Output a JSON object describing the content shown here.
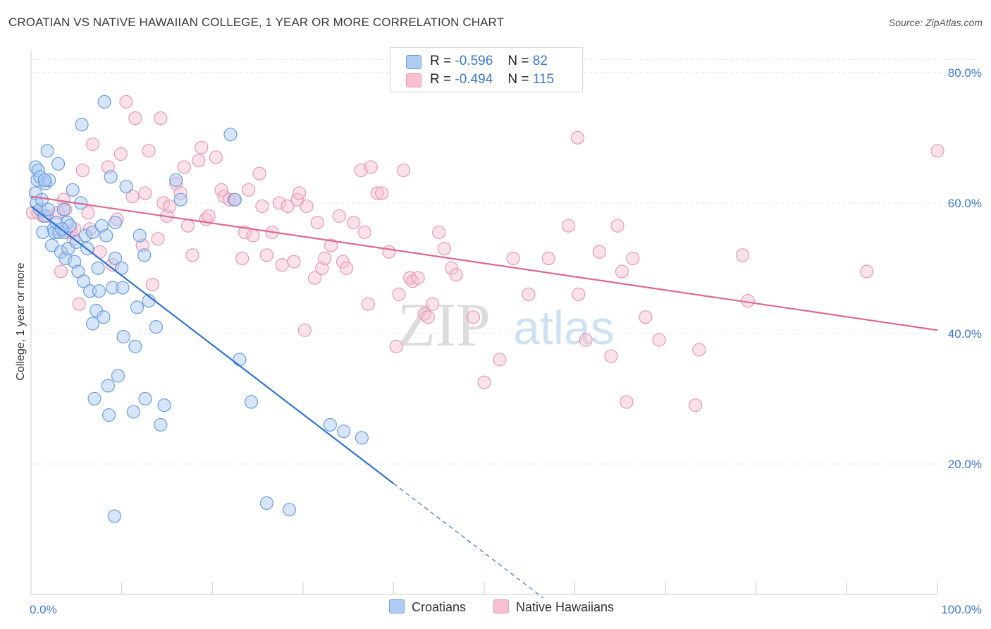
{
  "title": "CROATIAN VS NATIVE HAWAIIAN COLLEGE, 1 YEAR OR MORE CORRELATION CHART",
  "source": "Source: ZipAtlas.com",
  "watermark": {
    "zip": "ZIP",
    "atlas": "atlas"
  },
  "colors": {
    "blue_fill": "#aecbf2",
    "blue_stroke": "#6a9ee0",
    "blue_line": "#2f73d4",
    "pink_fill": "#f7bfd0",
    "pink_stroke": "#e898b2",
    "pink_line": "#e0678f",
    "grid": "#e3e3e3",
    "axis_text": "#3b78d0"
  },
  "legend": {
    "rows": [
      {
        "r_label": "R =",
        "r_value": "-0.596",
        "n_label": "N =",
        "n_value": "82"
      },
      {
        "r_label": "R =",
        "r_value": "-0.494",
        "n_label": "N =",
        "n_value": "115"
      }
    ],
    "series": [
      "Croatians",
      "Native Hawaiians"
    ]
  },
  "chart_data": {
    "type": "scatter",
    "title": "CROATIAN VS NATIVE HAWAIIAN COLLEGE, 1 YEAR OR MORE CORRELATION CHART",
    "xlabel": "",
    "ylabel": "College, 1 year or more",
    "xlim": [
      0,
      100
    ],
    "ylim": [
      0,
      83
    ],
    "x_tick_labels": [
      "0.0%",
      "100.0%"
    ],
    "y_ticks": [
      20,
      40,
      60,
      80
    ],
    "y_tick_labels": [
      "20.0%",
      "40.0%",
      "60.0%",
      "80.0%"
    ],
    "grid": true,
    "legend_position": "top-center",
    "series": [
      {
        "name": "Croatians",
        "R": -0.596,
        "N": 82,
        "trend": {
          "x0": 0,
          "y0": 59.5,
          "x1": 40,
          "y1": 17.0,
          "dashed_to_x": 56.5
        },
        "points": [
          [
            0.5,
            65.5
          ],
          [
            0.5,
            61.5
          ],
          [
            0.6,
            60.0
          ],
          [
            0.7,
            63.5
          ],
          [
            0.8,
            65.0
          ],
          [
            1.0,
            64.0
          ],
          [
            1.0,
            59.0
          ],
          [
            1.2,
            60.5
          ],
          [
            1.3,
            55.5
          ],
          [
            1.5,
            58.0
          ],
          [
            1.6,
            63.0
          ],
          [
            1.8,
            68.0
          ],
          [
            1.9,
            59.0
          ],
          [
            2.0,
            63.5
          ],
          [
            2.3,
            53.5
          ],
          [
            2.5,
            56.0
          ],
          [
            2.6,
            55.5
          ],
          [
            2.8,
            57.0
          ],
          [
            3.0,
            66.0
          ],
          [
            3.1,
            55.5
          ],
          [
            3.3,
            52.5
          ],
          [
            3.6,
            59.0
          ],
          [
            3.7,
            55.5
          ],
          [
            3.8,
            51.5
          ],
          [
            4.0,
            57.0
          ],
          [
            4.1,
            53.0
          ],
          [
            4.3,
            56.5
          ],
          [
            4.6,
            62.0
          ],
          [
            4.8,
            51.0
          ],
          [
            5.0,
            54.0
          ],
          [
            5.2,
            49.5
          ],
          [
            5.5,
            60.0
          ],
          [
            5.6,
            72.0
          ],
          [
            5.8,
            48.0
          ],
          [
            6.0,
            55.0
          ],
          [
            6.2,
            53.0
          ],
          [
            6.5,
            46.5
          ],
          [
            6.8,
            55.5
          ],
          [
            6.8,
            41.5
          ],
          [
            7.0,
            30.0
          ],
          [
            7.2,
            43.5
          ],
          [
            7.4,
            50.0
          ],
          [
            7.5,
            46.5
          ],
          [
            7.8,
            56.5
          ],
          [
            8.0,
            42.5
          ],
          [
            8.1,
            75.5
          ],
          [
            8.3,
            55.0
          ],
          [
            8.5,
            32.0
          ],
          [
            8.6,
            27.5
          ],
          [
            8.8,
            64.0
          ],
          [
            9.0,
            47.0
          ],
          [
            9.2,
            12.0
          ],
          [
            9.3,
            51.5
          ],
          [
            9.3,
            57.0
          ],
          [
            9.6,
            33.5
          ],
          [
            10.0,
            50.0
          ],
          [
            10.1,
            47.0
          ],
          [
            10.2,
            39.5
          ],
          [
            10.5,
            62.5
          ],
          [
            11.3,
            28.0
          ],
          [
            11.5,
            38.0
          ],
          [
            11.7,
            44.0
          ],
          [
            12.0,
            55.0
          ],
          [
            12.5,
            52.0
          ],
          [
            12.6,
            30.0
          ],
          [
            13.0,
            45.0
          ],
          [
            13.8,
            41.0
          ],
          [
            14.3,
            26.0
          ],
          [
            14.7,
            29.0
          ],
          [
            16.0,
            63.5
          ],
          [
            16.5,
            60.5
          ],
          [
            22.0,
            70.5
          ],
          [
            22.5,
            60.5
          ],
          [
            23.0,
            36.0
          ],
          [
            24.3,
            29.5
          ],
          [
            26.0,
            14.0
          ],
          [
            28.5,
            13.0
          ],
          [
            33.0,
            26.0
          ],
          [
            34.5,
            25.0
          ],
          [
            36.5,
            24.0
          ],
          [
            1.5,
            63.5
          ],
          [
            3.4,
            56.0
          ]
        ]
      },
      {
        "name": "Native Hawaiians",
        "R": -0.494,
        "N": 115,
        "trend": {
          "x0": 0,
          "y0": 61.0,
          "x1": 100,
          "y1": 40.5
        },
        "points": [
          [
            0.2,
            58.5
          ],
          [
            0.8,
            58.5
          ],
          [
            1.3,
            58.0
          ],
          [
            1.8,
            58.0
          ],
          [
            3.0,
            58.5
          ],
          [
            3.3,
            49.5
          ],
          [
            3.6,
            60.5
          ],
          [
            3.8,
            59.0
          ],
          [
            4.4,
            55.5
          ],
          [
            4.7,
            54.5
          ],
          [
            4.8,
            56.0
          ],
          [
            5.3,
            44.5
          ],
          [
            5.7,
            65.0
          ],
          [
            6.3,
            58.5
          ],
          [
            6.5,
            56.0
          ],
          [
            6.8,
            69.0
          ],
          [
            7.6,
            52.5
          ],
          [
            8.5,
            65.5
          ],
          [
            9.0,
            50.5
          ],
          [
            9.5,
            57.5
          ],
          [
            9.9,
            67.5
          ],
          [
            10.5,
            75.5
          ],
          [
            11.2,
            61.0
          ],
          [
            11.5,
            73.0
          ],
          [
            12.3,
            53.5
          ],
          [
            12.6,
            61.5
          ],
          [
            13.0,
            68.0
          ],
          [
            13.4,
            47.5
          ],
          [
            14.0,
            54.5
          ],
          [
            14.3,
            73.0
          ],
          [
            14.6,
            60.0
          ],
          [
            15.0,
            58.0
          ],
          [
            15.3,
            59.5
          ],
          [
            16.0,
            63.0
          ],
          [
            16.5,
            61.5
          ],
          [
            16.9,
            65.5
          ],
          [
            17.3,
            56.5
          ],
          [
            17.8,
            52.0
          ],
          [
            18.5,
            66.5
          ],
          [
            18.8,
            68.5
          ],
          [
            19.3,
            57.5
          ],
          [
            19.6,
            58.0
          ],
          [
            20.4,
            67.0
          ],
          [
            21.0,
            62.0
          ],
          [
            21.3,
            61.0
          ],
          [
            21.9,
            60.5
          ],
          [
            22.4,
            60.5
          ],
          [
            23.3,
            51.5
          ],
          [
            23.6,
            55.5
          ],
          [
            24.0,
            62.0
          ],
          [
            24.5,
            55.0
          ],
          [
            25.2,
            64.5
          ],
          [
            25.5,
            59.5
          ],
          [
            26.0,
            52.0
          ],
          [
            26.6,
            55.5
          ],
          [
            27.4,
            60.0
          ],
          [
            27.7,
            50.5
          ],
          [
            28.3,
            59.5
          ],
          [
            29.0,
            51.0
          ],
          [
            29.4,
            60.5
          ],
          [
            29.6,
            61.5
          ],
          [
            30.2,
            40.5
          ],
          [
            30.4,
            59.5
          ],
          [
            31.3,
            48.5
          ],
          [
            31.6,
            57.0
          ],
          [
            32.1,
            50.0
          ],
          [
            32.4,
            51.5
          ],
          [
            33.1,
            53.5
          ],
          [
            34.0,
            58.0
          ],
          [
            34.4,
            51.0
          ],
          [
            34.8,
            50.0
          ],
          [
            35.6,
            57.0
          ],
          [
            36.4,
            65.0
          ],
          [
            36.8,
            55.5
          ],
          [
            37.2,
            44.5
          ],
          [
            37.5,
            65.5
          ],
          [
            38.2,
            61.5
          ],
          [
            38.7,
            61.5
          ],
          [
            39.5,
            52.5
          ],
          [
            40.3,
            38.0
          ],
          [
            40.6,
            46.0
          ],
          [
            41.1,
            65.0
          ],
          [
            41.8,
            48.5
          ],
          [
            42.1,
            48.0
          ],
          [
            42.7,
            48.5
          ],
          [
            43.4,
            43.0
          ],
          [
            43.8,
            42.5
          ],
          [
            44.3,
            44.5
          ],
          [
            45.0,
            55.5
          ],
          [
            45.6,
            53.0
          ],
          [
            46.4,
            50.0
          ],
          [
            46.9,
            49.0
          ],
          [
            48.8,
            42.5
          ],
          [
            50.0,
            32.5
          ],
          [
            51.7,
            36.0
          ],
          [
            53.2,
            51.5
          ],
          [
            54.9,
            46.0
          ],
          [
            57.1,
            51.5
          ],
          [
            59.3,
            56.5
          ],
          [
            60.3,
            70.0
          ],
          [
            60.4,
            46.0
          ],
          [
            61.2,
            39.0
          ],
          [
            62.7,
            52.5
          ],
          [
            64.0,
            36.5
          ],
          [
            64.7,
            56.5
          ],
          [
            65.2,
            49.5
          ],
          [
            65.7,
            29.5
          ],
          [
            66.4,
            51.5
          ],
          [
            67.8,
            42.5
          ],
          [
            69.3,
            39.0
          ],
          [
            73.3,
            29.0
          ],
          [
            73.7,
            37.5
          ],
          [
            78.5,
            52.0
          ],
          [
            79.1,
            45.0
          ],
          [
            92.2,
            49.5
          ],
          [
            100.0,
            68.0
          ]
        ]
      }
    ]
  }
}
